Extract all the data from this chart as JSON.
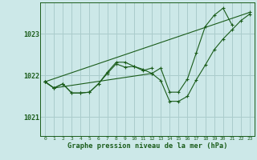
{
  "title": "Graphe pression niveau de la mer (hPa)",
  "bg_color": "#cce8e8",
  "grid_color": "#aacccc",
  "line_color": "#1a5c1a",
  "xlim": [
    -0.5,
    23.5
  ],
  "ylim": [
    1020.55,
    1023.75
  ],
  "yticks": [
    1021,
    1022,
    1023
  ],
  "xticks": [
    0,
    1,
    2,
    3,
    4,
    5,
    6,
    7,
    8,
    9,
    10,
    11,
    12,
    13,
    14,
    15,
    16,
    17,
    18,
    19,
    20,
    21,
    22,
    23
  ],
  "series": [
    [
      1021.85,
      1021.7,
      1021.8,
      1021.58,
      1021.58,
      1021.6,
      1021.8,
      1022.05,
      1022.28,
      1022.2,
      1022.22,
      1022.12,
      1022.18,
      null,
      null,
      null,
      null,
      null,
      null,
      null,
      null,
      null,
      null,
      null
    ],
    [
      1021.85,
      1021.7,
      1021.8,
      1021.58,
      1021.58,
      1021.6,
      1021.8,
      1022.08,
      1022.32,
      1022.32,
      1022.22,
      1022.15,
      1022.05,
      1021.88,
      1021.38,
      1021.38,
      1021.5,
      1021.9,
      1022.25,
      1022.62,
      1022.88,
      1023.1,
      1023.32,
      1023.48
    ],
    [
      1021.85,
      1021.7,
      null,
      null,
      null,
      null,
      null,
      null,
      null,
      null,
      null,
      null,
      1022.05,
      1022.18,
      1021.6,
      1021.6,
      1021.92,
      1022.55,
      1023.18,
      1023.45,
      1023.62,
      1023.22,
      null,
      null
    ],
    [
      1021.85,
      null,
      null,
      null,
      null,
      null,
      null,
      null,
      null,
      null,
      null,
      null,
      null,
      null,
      null,
      null,
      null,
      null,
      null,
      null,
      null,
      null,
      null,
      1023.52
    ]
  ]
}
